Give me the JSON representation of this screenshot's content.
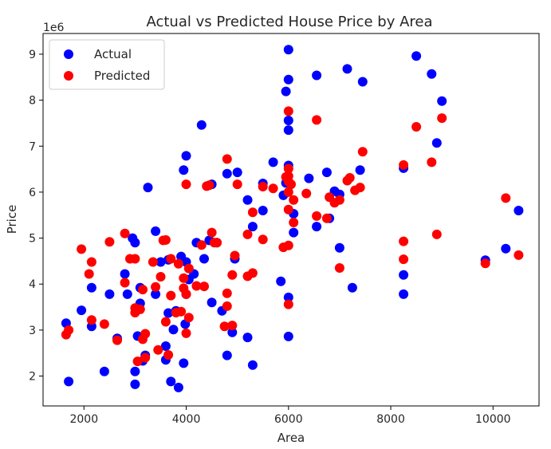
{
  "chart_data": {
    "type": "scatter",
    "title": "Actual vs Predicted House Price by Area",
    "xlabel": "Area",
    "ylabel": "Price",
    "y_offset_label": "1e6",
    "xlim": [
      1200,
      10900
    ],
    "ylim": [
      1.35,
      9.45
    ],
    "xticks": [
      2000,
      4000,
      6000,
      8000,
      10000
    ],
    "yticks": [
      2,
      3,
      4,
      5,
      6,
      7,
      8,
      9
    ],
    "grid": false,
    "legend_position": "top-left",
    "series": [
      {
        "name": "Actual",
        "color": "#0000ff",
        "points": [
          [
            1650,
            3.15
          ],
          [
            1700,
            1.88
          ],
          [
            1950,
            3.43
          ],
          [
            2150,
            3.08
          ],
          [
            2150,
            3.92
          ],
          [
            2400,
            2.1
          ],
          [
            2500,
            3.78
          ],
          [
            2650,
            2.82
          ],
          [
            2800,
            4.22
          ],
          [
            2850,
            3.78
          ],
          [
            2950,
            5.0
          ],
          [
            3000,
            1.82
          ],
          [
            3000,
            2.1
          ],
          [
            3000,
            4.9
          ],
          [
            3050,
            2.87
          ],
          [
            3100,
            3.58
          ],
          [
            3100,
            3.92
          ],
          [
            3150,
            2.33
          ],
          [
            3200,
            2.45
          ],
          [
            3250,
            6.1
          ],
          [
            3400,
            3.78
          ],
          [
            3400,
            5.15
          ],
          [
            3500,
            4.48
          ],
          [
            3600,
            2.35
          ],
          [
            3600,
            2.65
          ],
          [
            3650,
            3.37
          ],
          [
            3650,
            4.53
          ],
          [
            3700,
            1.88
          ],
          [
            3750,
            3.01
          ],
          [
            3800,
            3.42
          ],
          [
            3850,
            1.75
          ],
          [
            3900,
            4.6
          ],
          [
            3950,
            2.28
          ],
          [
            3950,
            6.48
          ],
          [
            3980,
            3.13
          ],
          [
            4000,
            3.78
          ],
          [
            4000,
            4.48
          ],
          [
            4000,
            6.79
          ],
          [
            4050,
            4.1
          ],
          [
            4150,
            4.22
          ],
          [
            4200,
            4.9
          ],
          [
            4300,
            7.46
          ],
          [
            4350,
            4.55
          ],
          [
            4450,
            4.95
          ],
          [
            4500,
            3.6
          ],
          [
            4500,
            6.17
          ],
          [
            4600,
            4.9
          ],
          [
            4700,
            3.42
          ],
          [
            4800,
            2.45
          ],
          [
            4800,
            6.4
          ],
          [
            4900,
            2.95
          ],
          [
            4950,
            4.55
          ],
          [
            5000,
            6.43
          ],
          [
            5200,
            2.84
          ],
          [
            5200,
            5.83
          ],
          [
            5300,
            2.24
          ],
          [
            5300,
            5.25
          ],
          [
            5500,
            5.6
          ],
          [
            5500,
            6.19
          ],
          [
            5700,
            6.65
          ],
          [
            5850,
            4.06
          ],
          [
            5900,
            5.93
          ],
          [
            5950,
            8.19
          ],
          [
            5950,
            6.2
          ],
          [
            6000,
            2.86
          ],
          [
            6000,
            3.71
          ],
          [
            6000,
            6.58
          ],
          [
            6000,
            7.35
          ],
          [
            6000,
            7.56
          ],
          [
            6000,
            8.45
          ],
          [
            6000,
            9.1
          ],
          [
            6100,
            5.12
          ],
          [
            6100,
            5.53
          ],
          [
            6400,
            6.3
          ],
          [
            6550,
            5.25
          ],
          [
            6550,
            8.54
          ],
          [
            6750,
            6.43
          ],
          [
            6800,
            5.43
          ],
          [
            6900,
            6.02
          ],
          [
            7000,
            4.79
          ],
          [
            7000,
            5.95
          ],
          [
            7150,
            8.68
          ],
          [
            7250,
            3.92
          ],
          [
            7400,
            6.48
          ],
          [
            7450,
            8.4
          ],
          [
            8250,
            3.78
          ],
          [
            8250,
            4.2
          ],
          [
            8250,
            6.52
          ],
          [
            8500,
            8.96
          ],
          [
            8800,
            8.57
          ],
          [
            8900,
            7.07
          ],
          [
            9000,
            7.98
          ],
          [
            9850,
            4.52
          ],
          [
            10250,
            4.77
          ],
          [
            10500,
            5.6
          ]
        ]
      },
      {
        "name": "Predicted",
        "color": "#ff0000",
        "points": [
          [
            1650,
            2.9
          ],
          [
            1700,
            3.0
          ],
          [
            1950,
            4.76
          ],
          [
            2100,
            4.22
          ],
          [
            2150,
            4.48
          ],
          [
            2150,
            3.22
          ],
          [
            2400,
            3.13
          ],
          [
            2500,
            4.92
          ],
          [
            2650,
            2.78
          ],
          [
            2800,
            5.1
          ],
          [
            2800,
            4.03
          ],
          [
            2900,
            4.55
          ],
          [
            3000,
            3.38
          ],
          [
            3000,
            3.48
          ],
          [
            3000,
            4.55
          ],
          [
            3050,
            2.32
          ],
          [
            3100,
            3.45
          ],
          [
            3150,
            2.8
          ],
          [
            3150,
            3.88
          ],
          [
            3200,
            2.92
          ],
          [
            3200,
            2.4
          ],
          [
            3350,
            4.48
          ],
          [
            3400,
            3.94
          ],
          [
            3450,
            2.57
          ],
          [
            3500,
            4.16
          ],
          [
            3550,
            4.95
          ],
          [
            3600,
            4.96
          ],
          [
            3600,
            3.18
          ],
          [
            3650,
            2.46
          ],
          [
            3700,
            4.55
          ],
          [
            3700,
            3.75
          ],
          [
            3800,
            3.38
          ],
          [
            3850,
            4.44
          ],
          [
            3900,
            3.4
          ],
          [
            3950,
            3.91
          ],
          [
            3950,
            4.13
          ],
          [
            4000,
            2.93
          ],
          [
            4000,
            6.17
          ],
          [
            4000,
            3.78
          ],
          [
            4050,
            3.27
          ],
          [
            4050,
            4.34
          ],
          [
            4200,
            3.96
          ],
          [
            4300,
            4.85
          ],
          [
            4350,
            3.95
          ],
          [
            4400,
            6.13
          ],
          [
            4450,
            6.15
          ],
          [
            4500,
            5.12
          ],
          [
            4550,
            4.9
          ],
          [
            4600,
            4.9
          ],
          [
            4750,
            3.08
          ],
          [
            4800,
            3.8
          ],
          [
            4800,
            6.72
          ],
          [
            4800,
            3.52
          ],
          [
            4900,
            4.2
          ],
          [
            4900,
            3.1
          ],
          [
            4950,
            4.62
          ],
          [
            5000,
            6.17
          ],
          [
            5200,
            4.17
          ],
          [
            5300,
            4.24
          ],
          [
            5300,
            5.56
          ],
          [
            5200,
            5.08
          ],
          [
            5500,
            4.97
          ],
          [
            5500,
            6.12
          ],
          [
            5700,
            6.08
          ],
          [
            5900,
            4.8
          ],
          [
            5950,
            6.33
          ],
          [
            6000,
            3.56
          ],
          [
            6000,
            4.84
          ],
          [
            6000,
            5.62
          ],
          [
            6000,
            6.0
          ],
          [
            6000,
            6.23
          ],
          [
            6000,
            6.35
          ],
          [
            6000,
            6.51
          ],
          [
            6000,
            7.76
          ],
          [
            6050,
            6.17
          ],
          [
            6100,
            5.34
          ],
          [
            6100,
            5.83
          ],
          [
            6350,
            5.97
          ],
          [
            6550,
            7.57
          ],
          [
            6550,
            5.48
          ],
          [
            6750,
            5.43
          ],
          [
            6800,
            5.89
          ],
          [
            6900,
            5.77
          ],
          [
            7000,
            4.35
          ],
          [
            7000,
            5.83
          ],
          [
            7150,
            6.25
          ],
          [
            7200,
            6.31
          ],
          [
            7300,
            6.04
          ],
          [
            7400,
            6.1
          ],
          [
            7450,
            6.88
          ],
          [
            8250,
            4.54
          ],
          [
            8250,
            4.93
          ],
          [
            8250,
            6.59
          ],
          [
            8500,
            7.42
          ],
          [
            8800,
            6.65
          ],
          [
            8900,
            5.08
          ],
          [
            9000,
            7.61
          ],
          [
            9850,
            4.45
          ],
          [
            10250,
            5.87
          ],
          [
            10500,
            4.63
          ]
        ]
      }
    ]
  }
}
